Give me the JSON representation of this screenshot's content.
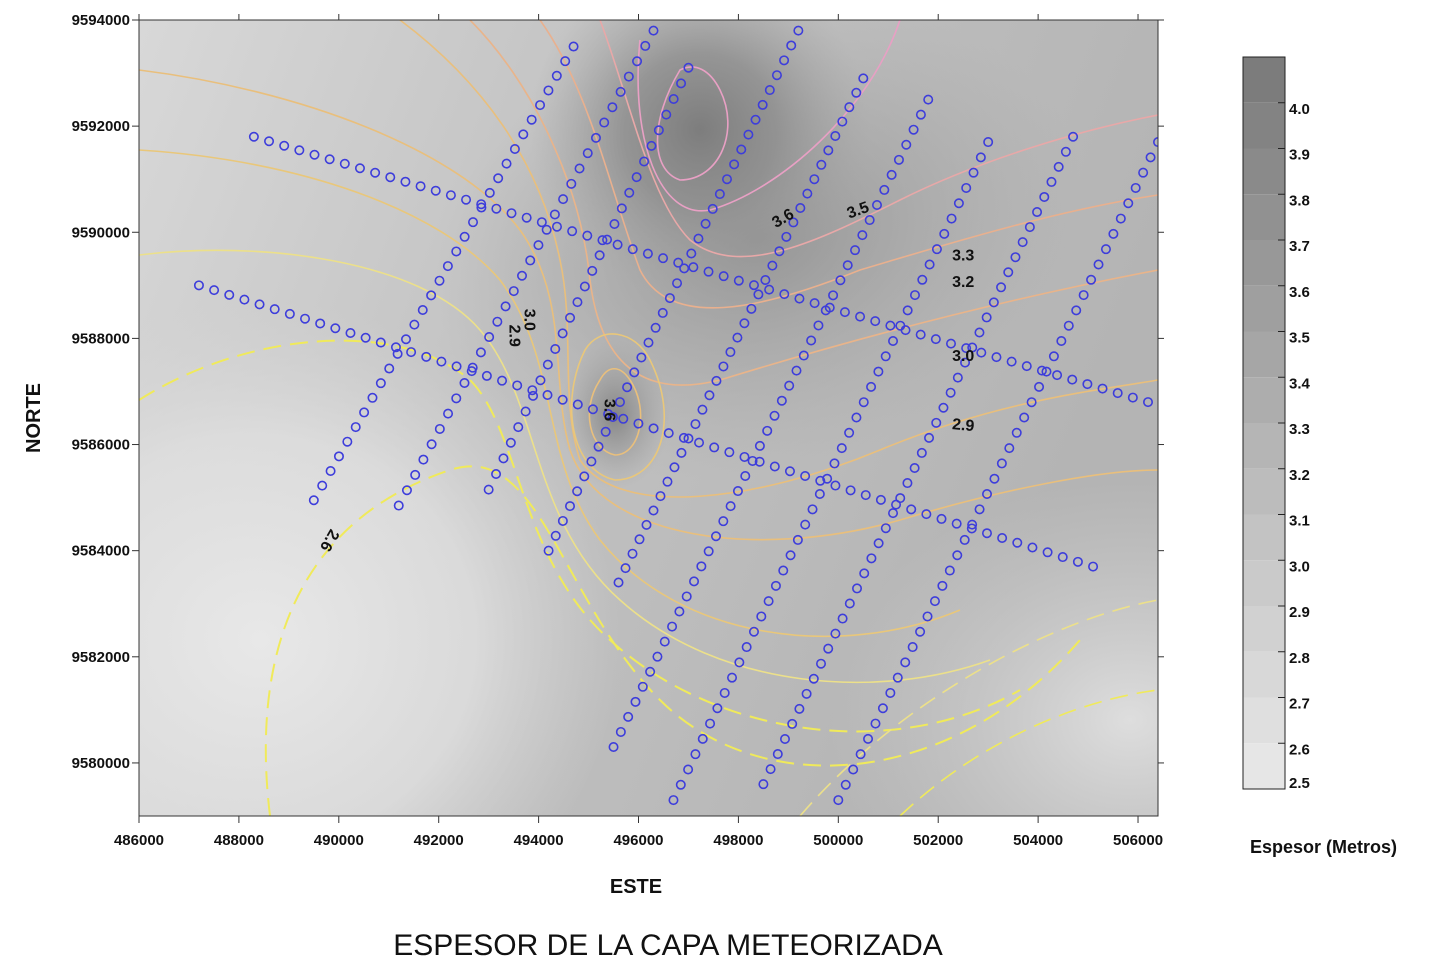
{
  "chart_data": {
    "type": "heatmap",
    "title": "ESPESOR DE LA CAPA METEORIZADA",
    "xlabel": "ESTE",
    "ylabel": "NORTE",
    "xlim": [
      486000,
      506400
    ],
    "ylim": [
      9579000,
      9594000
    ],
    "xticks": [
      486000,
      488000,
      490000,
      492000,
      494000,
      496000,
      498000,
      500000,
      502000,
      504000,
      506000
    ],
    "yticks": [
      9580000,
      9582000,
      9584000,
      9586000,
      9588000,
      9590000,
      9592000,
      9594000
    ],
    "xtick_labels": [
      "486000",
      "488000",
      "490000",
      "492000",
      "494000",
      "496000",
      "498000",
      "500000",
      "502000",
      "504000",
      "506000"
    ],
    "ytick_labels": [
      "9580000",
      "9582000",
      "9584000",
      "9586000",
      "9588000",
      "9590000",
      "9592000",
      "9594000"
    ],
    "colorbar": {
      "title": "Espesor  (Metros)",
      "min": 2.5,
      "max": 4.1,
      "levels": [
        "2.5",
        "2.6",
        "2.7",
        "2.8",
        "2.9",
        "3.0",
        "3.1",
        "3.2",
        "3.3",
        "3.4",
        "3.5",
        "3.6",
        "3.7",
        "3.8",
        "3.9",
        "4.0"
      ],
      "color_low": "#e6e6e6",
      "color_high": "#7c7c7c"
    },
    "contour_labels": [
      {
        "text": "3.6",
        "x": 498900,
        "y": 9590250,
        "angle": -30
      },
      {
        "text": "3.5",
        "x": 500400,
        "y": 9590400,
        "angle": -20
      },
      {
        "text": "3.3",
        "x": 502500,
        "y": 9589550,
        "angle": 0
      },
      {
        "text": "3.2",
        "x": 502500,
        "y": 9589050,
        "angle": 0
      },
      {
        "text": "3.0",
        "x": 502500,
        "y": 9587650,
        "angle": 0
      },
      {
        "text": "2.9",
        "x": 502500,
        "y": 9586350,
        "angle": 5
      },
      {
        "text": "3.0",
        "x": 493800,
        "y": 9588350,
        "angle": 90
      },
      {
        "text": "2.9",
        "x": 493500,
        "y": 9588050,
        "angle": 90
      },
      {
        "text": "3.6",
        "x": 495400,
        "y": 9586650,
        "angle": 90
      },
      {
        "text": "2.6",
        "x": 489800,
        "y": 9584200,
        "angle": 120
      }
    ],
    "contour_colors": {
      "low": "#f0ea5a",
      "mid": "#e9bf7c",
      "high": "#e8a0c4"
    },
    "survey_lines": {
      "marker_color": "#3d3ddb",
      "lines": [
        {
          "start": [
            488300,
            9591800
          ],
          "end": [
            506200,
            9586800
          ],
          "n": 60
        },
        {
          "start": [
            487200,
            9589000
          ],
          "end": [
            505100,
            9583700
          ],
          "n": 60
        },
        {
          "start": [
            489500,
            9584950
          ],
          "end": [
            494700,
            9593500
          ],
          "n": 32
        },
        {
          "start": [
            491200,
            9584850
          ],
          "end": [
            496300,
            9593800
          ],
          "n": 32
        },
        {
          "start": [
            493000,
            9585150
          ],
          "end": [
            497000,
            9593100
          ],
          "n": 28
        },
        {
          "start": [
            494200,
            9584000
          ],
          "end": [
            499200,
            9593800
          ],
          "n": 36
        },
        {
          "start": [
            495600,
            9583400
          ],
          "end": [
            500500,
            9592900
          ],
          "n": 36
        },
        {
          "start": [
            495500,
            9580300
          ],
          "end": [
            501800,
            9592500
          ],
          "n": 44
        },
        {
          "start": [
            496700,
            9579300
          ],
          "end": [
            503000,
            9591700
          ],
          "n": 44
        },
        {
          "start": [
            498500,
            9579600
          ],
          "end": [
            504700,
            9591800
          ],
          "n": 44
        },
        {
          "start": [
            500000,
            9579300
          ],
          "end": [
            506400,
            9591700
          ],
          "n": 44
        }
      ]
    }
  }
}
